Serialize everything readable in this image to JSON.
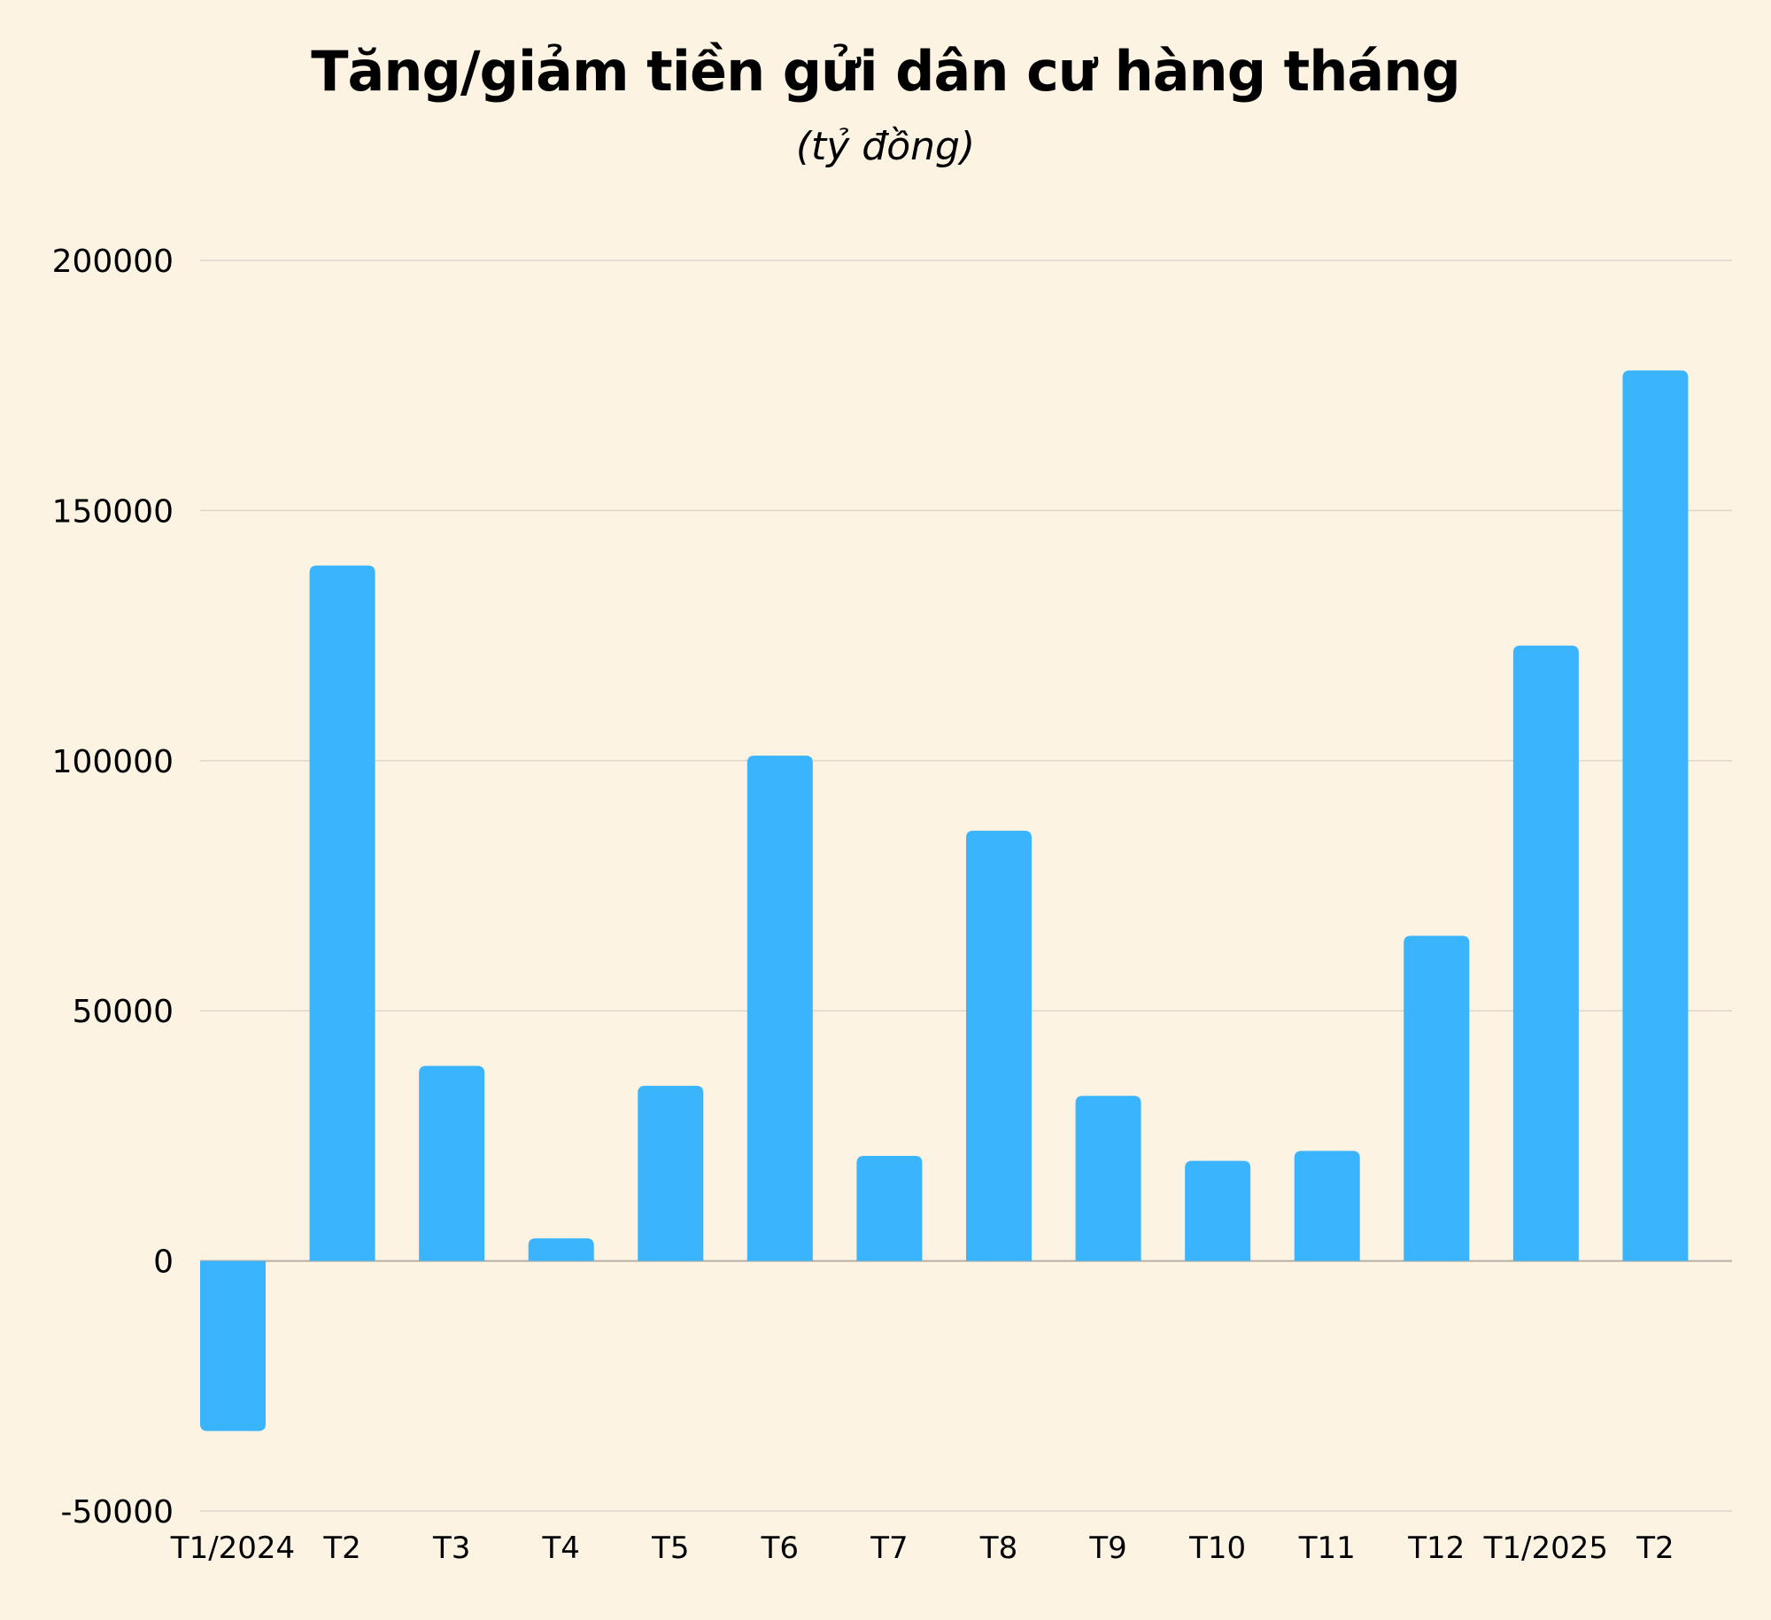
{
  "chart_data": {
    "type": "bar",
    "title": "Tăng/giảm tiền gửi dân cư hàng tháng",
    "subtitle": "(tỷ đồng)",
    "xlabel": "",
    "ylabel": "",
    "categories": [
      "T1/2024",
      "T2",
      "T3",
      "T4",
      "T5",
      "T6",
      "T7",
      "T8",
      "T9",
      "T10",
      "T11",
      "T12",
      "T1/2025",
      "T2"
    ],
    "values": [
      -34000,
      139000,
      39000,
      4500,
      35000,
      101000,
      21000,
      86000,
      33000,
      20000,
      22000,
      65000,
      123000,
      178000
    ],
    "ylim": [
      -50000,
      200000
    ],
    "yticks": [
      200000,
      150000,
      100000,
      50000,
      0,
      -50000
    ],
    "grid": true,
    "legend": "none",
    "bar_color": "#3ab4fc",
    "grid_color": "#dcd6cb",
    "zero_line_color": "#b5b0a8"
  }
}
